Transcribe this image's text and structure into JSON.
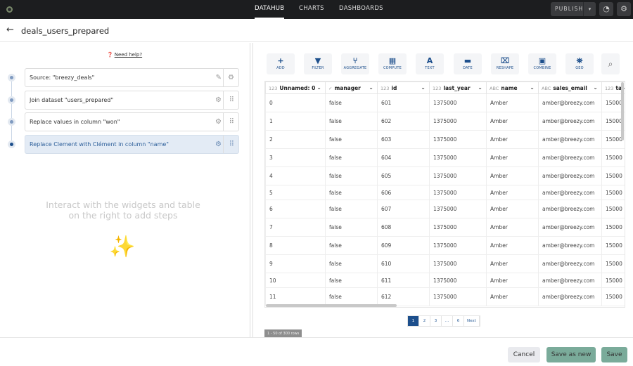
{
  "topbar": {
    "nav": [
      "DATAHUB",
      "CHARTS",
      "DASHBOARDS"
    ],
    "active": "DATAHUB",
    "publish": "PUBLISH"
  },
  "header": {
    "title": "deals_users_prepared"
  },
  "steps": {
    "help": "Need help?",
    "items": [
      {
        "label": "Source: \"breezy_deals\""
      },
      {
        "label": "Join dataset \"users_prepared\""
      },
      {
        "label": "Replace values in column \"won\""
      },
      {
        "label": "Replace Clement with Clément in column \"name\"",
        "active": true
      }
    ],
    "hint": "Interact with the widgets and table on the right to add steps"
  },
  "toolbar": [
    {
      "label": "ADD",
      "icon": "plus"
    },
    {
      "label": "FILTER",
      "icon": "funnel"
    },
    {
      "label": "AGGREGATE",
      "icon": "branch"
    },
    {
      "label": "COMPUTE",
      "icon": "calculator"
    },
    {
      "label": "TEXT",
      "icon": "letter-a"
    },
    {
      "label": "DATE",
      "icon": "calendar"
    },
    {
      "label": "RESHAPE",
      "icon": "reshape"
    },
    {
      "label": "COMBINE",
      "icon": "combine"
    },
    {
      "label": "GEO",
      "icon": "map"
    }
  ],
  "table": {
    "columns": [
      {
        "type": "123",
        "name": "Unnamed: 0"
      },
      {
        "type": "✓",
        "name": "manager"
      },
      {
        "type": "123",
        "name": "id"
      },
      {
        "type": "123",
        "name": "last_year"
      },
      {
        "type": "ABC",
        "name": "name"
      },
      {
        "type": "ABC",
        "name": "sales_email"
      },
      {
        "type": "123",
        "name": "ta"
      }
    ],
    "rows": [
      [
        "0",
        "false",
        "601",
        "1375000",
        "Amber",
        "amber@breezy.com",
        "15000"
      ],
      [
        "1",
        "false",
        "602",
        "1375000",
        "Amber",
        "amber@breezy.com",
        "15000"
      ],
      [
        "2",
        "false",
        "603",
        "1375000",
        "Amber",
        "amber@breezy.com",
        "15000"
      ],
      [
        "3",
        "false",
        "604",
        "1375000",
        "Amber",
        "amber@breezy.com",
        "15000"
      ],
      [
        "4",
        "false",
        "605",
        "1375000",
        "Amber",
        "amber@breezy.com",
        "15000"
      ],
      [
        "5",
        "false",
        "606",
        "1375000",
        "Amber",
        "amber@breezy.com",
        "15000"
      ],
      [
        "6",
        "false",
        "607",
        "1375000",
        "Amber",
        "amber@breezy.com",
        "15000"
      ],
      [
        "7",
        "false",
        "608",
        "1375000",
        "Amber",
        "amber@breezy.com",
        "15000"
      ],
      [
        "8",
        "false",
        "609",
        "1375000",
        "Amber",
        "amber@breezy.com",
        "15000"
      ],
      [
        "9",
        "false",
        "610",
        "1375000",
        "Amber",
        "amber@breezy.com",
        "15000"
      ],
      [
        "10",
        "false",
        "611",
        "1375000",
        "Amber",
        "amber@breezy.com",
        "15000"
      ],
      [
        "11",
        "false",
        "612",
        "1375000",
        "Amber",
        "amber@breezy.com",
        "15000"
      ]
    ]
  },
  "pagination": {
    "pages": [
      "1",
      "2",
      "3",
      "...",
      "6",
      "Next"
    ],
    "current": "1",
    "rows_info": "1 - 50 of 300 rows"
  },
  "footer": {
    "cancel": "Cancel",
    "save_as_new": "Save as new",
    "save": "Save"
  },
  "colors": {
    "accent": "#1d4f8c",
    "save": "#7aab9a",
    "topbar": "#1c1d1f"
  }
}
